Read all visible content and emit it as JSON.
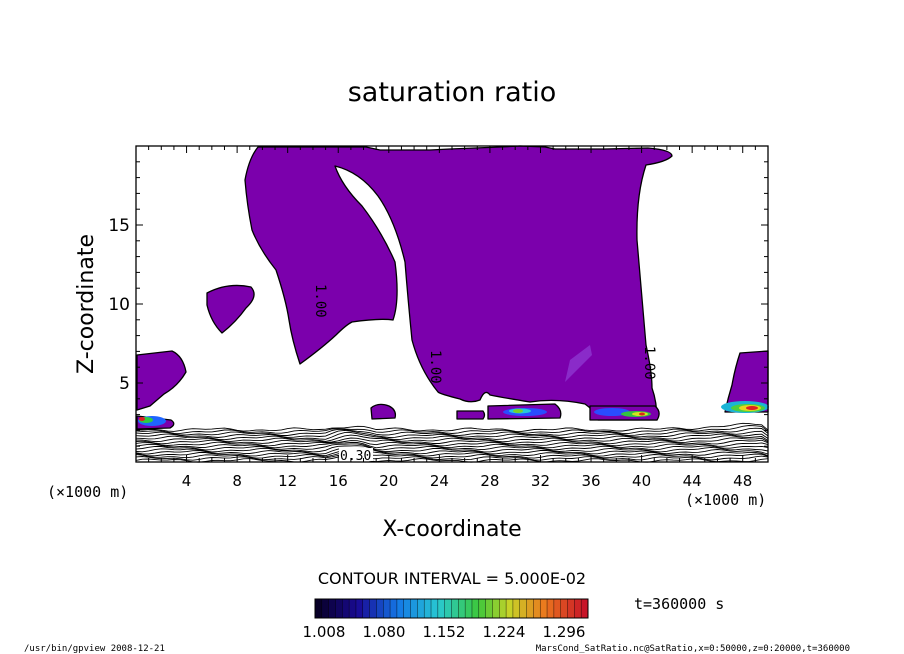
{
  "chart_data": {
    "type": "heatmap",
    "title": "saturation ratio",
    "xlabel": "X-coordinate",
    "ylabel": "Z-coordinate",
    "x_units": "(×1000 m)",
    "y_units": "(×1000 m)",
    "xlim": [
      0,
      50
    ],
    "ylim": [
      0,
      20
    ],
    "x_ticks": [
      "4",
      "8",
      "12",
      "16",
      "20",
      "24",
      "28",
      "32",
      "36",
      "40",
      "44",
      "48"
    ],
    "y_ticks": [
      "5",
      "10",
      "15"
    ],
    "contour_interval": "CONTOUR INTERVAL = 5.000E-02",
    "contour_labels": [
      {
        "text": "1.00",
        "x": 14.4,
        "z": 10.0
      },
      {
        "text": "1.00",
        "x": 23.8,
        "z": 5.8
      },
      {
        "text": "1.00",
        "x": 40.5,
        "z": 6.0
      },
      {
        "text": "0.30",
        "x": 17.2,
        "z": 0.3
      }
    ],
    "time_label": "t=360000 s",
    "colorbar": {
      "ticks": [
        "1.008",
        "1.080",
        "1.152",
        "1.224",
        "1.296"
      ],
      "min": 1.008,
      "max": 1.32,
      "levels": 40
    },
    "legend": "bottom",
    "grid": false
  },
  "footer": {
    "left": "/usr/bin/gpview   2008-12-21",
    "right": "MarsCond_SatRatio.nc@SatRatio,x=0:50000,z=0:20000,t=360000"
  }
}
